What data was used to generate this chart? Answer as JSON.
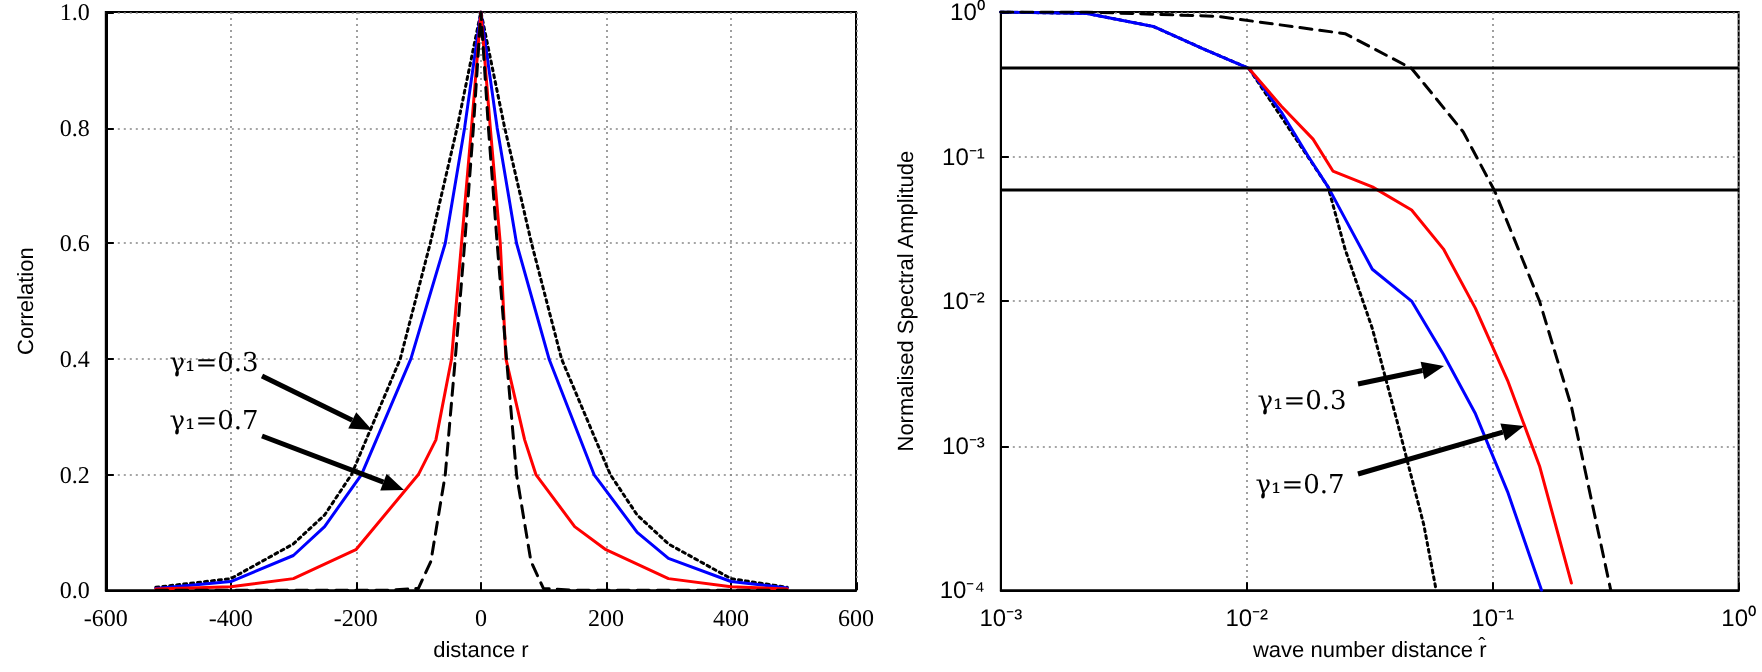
{
  "chart_data": [
    {
      "type": "line",
      "xlabel": "distance r",
      "ylabel": "Correlation",
      "xlim": [
        -600,
        600
      ],
      "ylim": [
        0,
        1
      ],
      "xticks": [
        -600,
        -400,
        -200,
        0,
        200,
        400,
        600
      ],
      "yticks": [
        {
          "value": 0,
          "label": "0.0"
        },
        0.2,
        0.4,
        0.6,
        0.8,
        {
          "value": 1,
          "label": "1.0"
        }
      ],
      "grid": true,
      "marker": "none",
      "series": [
        {
          "color": "#000000",
          "line_style": "dotted",
          "x": [
            -520,
            -400,
            -300,
            -250,
            -207,
            -129,
            -81,
            -38,
            0,
            38,
            81,
            129,
            207,
            250,
            300,
            400,
            490
          ],
          "values": [
            0.005,
            0.02,
            0.08,
            0.13,
            0.2,
            0.4,
            0.6,
            0.8,
            1,
            0.8,
            0.6,
            0.4,
            0.2,
            0.13,
            0.08,
            0.02,
            0.005
          ]
        },
        {
          "color": "#0000ff",
          "line_style": "solid",
          "x": [
            -520,
            -400,
            -300,
            -250,
            -191,
            -112,
            -57,
            -26,
            0,
            26,
            57,
            109,
            181,
            250,
            300,
            400,
            490
          ],
          "values": [
            0.003,
            0.015,
            0.06,
            0.11,
            0.2,
            0.4,
            0.6,
            0.8,
            1,
            0.8,
            0.6,
            0.4,
            0.2,
            0.1,
            0.055,
            0.015,
            0.004
          ]
        },
        {
          "color": "#ff0000",
          "line_style": "solid",
          "x": [
            -520,
            -400,
            -300,
            -200,
            -100,
            -72,
            -47,
            -31,
            -15,
            0,
            15,
            31,
            40,
            70,
            88,
            150,
            200,
            300,
            400,
            490
          ],
          "values": [
            0.002,
            0.006,
            0.02,
            0.07,
            0.2,
            0.26,
            0.4,
            0.6,
            0.8,
            1,
            0.8,
            0.6,
            0.4,
            0.26,
            0.2,
            0.11,
            0.07,
            0.02,
            0.006,
            0.002
          ]
        },
        {
          "color": "#000000",
          "line_style": "dashed",
          "x": [
            -520,
            -150,
            -100,
            -80,
            -57,
            -41,
            -26,
            -12,
            0,
            12,
            26,
            41,
            57,
            80,
            100,
            150,
            490
          ],
          "values": [
            0,
            0,
            0.003,
            0.05,
            0.2,
            0.4,
            0.6,
            0.8,
            1,
            0.8,
            0.6,
            0.4,
            0.2,
            0.05,
            0.003,
            0,
            0
          ]
        }
      ],
      "annotations": [
        "γ₁=0.3",
        "γ₁=0.7"
      ]
    },
    {
      "type": "line",
      "xlabel": "wave number distance r̂",
      "ylabel": "Normalised Spectral Amplitude",
      "log": "xy",
      "xlim": [
        0.001,
        1
      ],
      "ylim": [
        0.0001,
        1
      ],
      "xticks": [
        {
          "value": 0.001,
          "label": "10⁻³"
        },
        {
          "value": 0.01,
          "label": "10⁻²"
        },
        {
          "value": 0.1,
          "label": "10⁻¹"
        },
        {
          "value": 1,
          "label": "10⁰"
        }
      ],
      "yticks": [
        {
          "value": 0.0001,
          "label": "10⁻⁴"
        },
        {
          "value": 0.001,
          "label": "10⁻³"
        },
        {
          "value": 0.01,
          "label": "10⁻²"
        },
        {
          "value": 0.1,
          "label": "10⁻¹"
        },
        {
          "value": 1,
          "label": "10⁰"
        }
      ],
      "grid": true,
      "marker": "none",
      "ref_lines": [
        {
          "axis": "y",
          "value": 0.41,
          "color": "#000000"
        },
        {
          "axis": "y",
          "value": 0.062,
          "color": "#000000"
        }
      ],
      "series": [
        {
          "color": "#000000",
          "line_style": "dotted",
          "x": [
            0.001,
            0.00224,
            0.00417,
            0.00676,
            0.0102,
            0.0214,
            0.0251,
            0.0324,
            0.0407,
            0.0525,
            0.0589
          ],
          "values": [
            1,
            0.977,
            0.794,
            0.55,
            0.407,
            0.0617,
            0.0229,
            0.00646,
            0.00151,
            0.000282,
            0.0001
          ]
        },
        {
          "color": "#0000ff",
          "line_style": "solid",
          "x": [
            0.001,
            0.00224,
            0.00417,
            0.00676,
            0.0102,
            0.0138,
            0.0178,
            0.0214,
            0.0324,
            0.0468,
            0.0631,
            0.0851,
            0.115,
            0.158
          ],
          "values": [
            1,
            0.977,
            0.794,
            0.55,
            0.407,
            0.204,
            0.1,
            0.0617,
            0.0166,
            0.01,
            0.00427,
            0.00166,
            0.000479,
            0.0001
          ]
        },
        {
          "color": "#ff0000",
          "line_style": "solid",
          "x": [
            0.0102,
            0.0138,
            0.0186,
            0.0224,
            0.0324,
            0.0468,
            0.0631,
            0.0851,
            0.115,
            0.155,
            0.209
          ],
          "values": [
            0.407,
            0.224,
            0.132,
            0.0794,
            0.0617,
            0.0427,
            0.0229,
            0.00891,
            0.00282,
            0.000724,
            0.000112
          ]
        },
        {
          "color": "#000000",
          "line_style": "dashed",
          "x": [
            0.001,
            0.00224,
            0.00759,
            0.0251,
            0.0468,
            0.0759,
            0.102,
            0.155,
            0.209,
            0.302
          ],
          "values": [
            1,
            1,
            0.933,
            0.708,
            0.407,
            0.148,
            0.0575,
            0.01,
            0.00186,
            0.0001
          ]
        }
      ],
      "annotations": [
        "γ₁=0.3",
        "γ₁=0.7"
      ]
    }
  ]
}
